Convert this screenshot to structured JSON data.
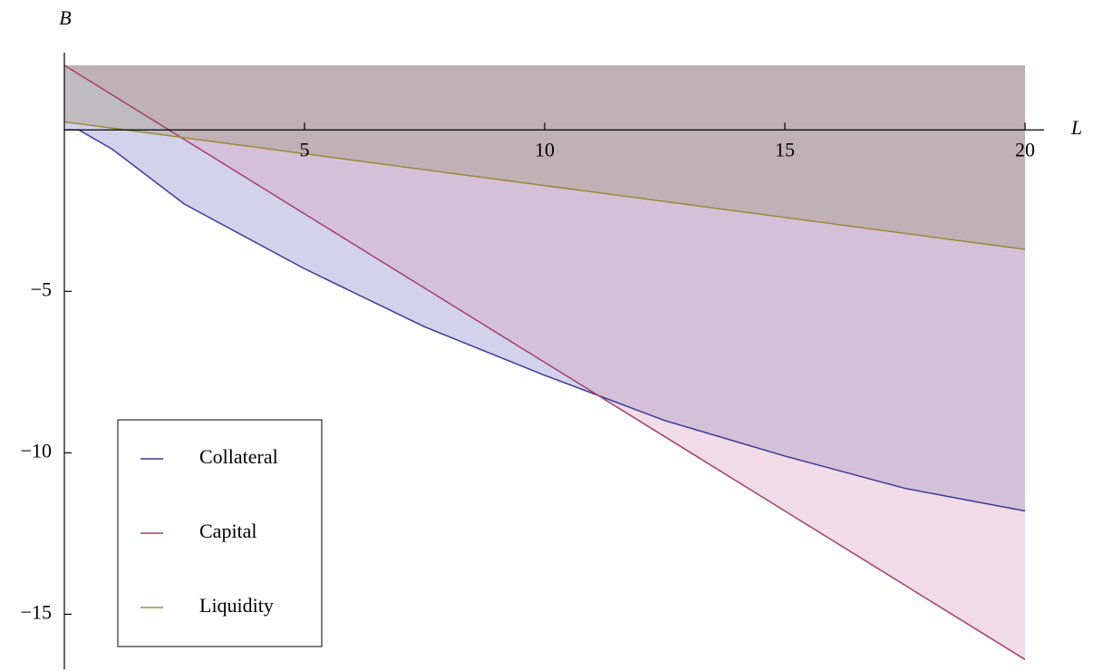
{
  "chart_data": {
    "type": "area",
    "x_label": "L",
    "y_label": "B",
    "xlim": [
      0,
      20
    ],
    "ylim": [
      -16.7,
      2.0
    ],
    "xticks": [
      5,
      10,
      15,
      20
    ],
    "yticks": [
      {
        "value": -5,
        "label": "−5"
      },
      {
        "value": -10,
        "label": "−10"
      },
      {
        "value": -15,
        "label": "−15"
      }
    ],
    "legend": "bottom-left",
    "series": [
      {
        "name": "Collateral",
        "color": "#3a3a96",
        "fill": "#8f8fd0",
        "x": [
          0,
          0.3,
          1,
          2.5,
          5,
          7.5,
          10,
          12.5,
          15,
          17.5,
          20
        ],
        "values": [
          0,
          0,
          -0.6,
          -2.3,
          -4.3,
          -6.1,
          -7.6,
          -9.0,
          -10.1,
          -11.1,
          -11.8
        ]
      },
      {
        "name": "Capital",
        "color": "#a3406e",
        "fill": "#d9a6c0",
        "x": [
          0,
          20
        ],
        "values": [
          2.0,
          -16.4
        ]
      },
      {
        "name": "Liquidity",
        "color": "#9a8a34",
        "fill": "#a09a80",
        "x": [
          0,
          20
        ],
        "values": [
          0.25,
          -3.7
        ]
      }
    ]
  }
}
